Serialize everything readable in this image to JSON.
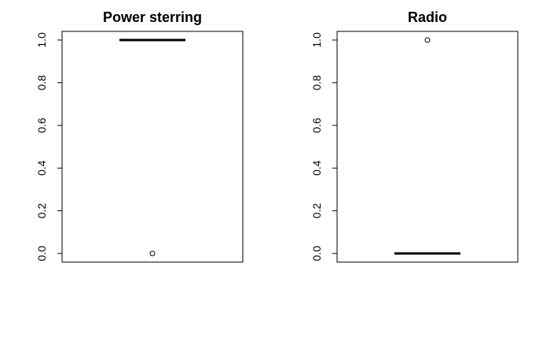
{
  "chart_data": [
    {
      "type": "box",
      "title": "Power sterring",
      "xlabel": "",
      "ylabel": "",
      "ylim": [
        0.0,
        1.0
      ],
      "yticks": [
        "0.0",
        "0.2",
        "0.4",
        "0.6",
        "0.8",
        "1.0"
      ],
      "median": 1.0,
      "q1": 1.0,
      "q3": 1.0,
      "outliers": [
        0.0
      ]
    },
    {
      "type": "box",
      "title": "Radio",
      "xlabel": "",
      "ylabel": "",
      "ylim": [
        0.0,
        1.0
      ],
      "yticks": [
        "0.0",
        "0.2",
        "0.4",
        "0.6",
        "0.8",
        "1.0"
      ],
      "median": 0.0,
      "q1": 0.0,
      "q3": 0.0,
      "outliers": [
        1.0
      ]
    }
  ]
}
